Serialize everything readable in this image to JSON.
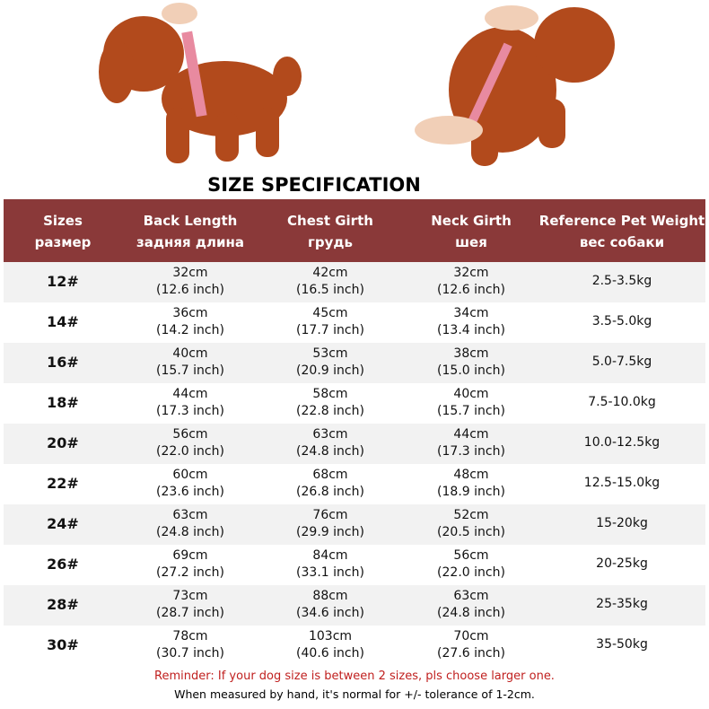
{
  "header": {
    "title": "SIZE SPECIFICATION"
  },
  "table": {
    "columns": [
      {
        "en": "Sizes",
        "ru": "размер"
      },
      {
        "en": "Back Length",
        "ru": "задняя длина"
      },
      {
        "en": "Chest Girth",
        "ru": "грудь"
      },
      {
        "en": "Neck Girth",
        "ru": "шея"
      },
      {
        "en": "Reference Pet Weight",
        "ru": "вес собаки"
      }
    ],
    "rows": [
      [
        "12#",
        [
          "32cm",
          "(12.6 inch)"
        ],
        [
          "42cm",
          "(16.5 inch)"
        ],
        [
          "32cm",
          "(12.6 inch)"
        ],
        "2.5-3.5kg"
      ],
      [
        "14#",
        [
          "36cm",
          "(14.2 inch)"
        ],
        [
          "45cm",
          "(17.7 inch)"
        ],
        [
          "34cm",
          "(13.4 inch)"
        ],
        "3.5-5.0kg"
      ],
      [
        "16#",
        [
          "40cm",
          "(15.7 inch)"
        ],
        [
          "53cm",
          "(20.9 inch)"
        ],
        [
          "38cm",
          "(15.0 inch)"
        ],
        "5.0-7.5kg"
      ],
      [
        "18#",
        [
          "44cm",
          "(17.3 inch)"
        ],
        [
          "58cm",
          "(22.8 inch)"
        ],
        [
          "40cm",
          "(15.7 inch)"
        ],
        "7.5-10.0kg"
      ],
      [
        "20#",
        [
          "56cm",
          "(22.0 inch)"
        ],
        [
          "63cm",
          "(24.8 inch)"
        ],
        [
          "44cm",
          "(17.3 inch)"
        ],
        "10.0-12.5kg"
      ],
      [
        "22#",
        [
          "60cm",
          "(23.6 inch)"
        ],
        [
          "68cm",
          "(26.8 inch)"
        ],
        [
          "48cm",
          "(18.9 inch)"
        ],
        "12.5-15.0kg"
      ],
      [
        "24#",
        [
          "63cm",
          "(24.8 inch)"
        ],
        [
          "76cm",
          "(29.9 inch)"
        ],
        [
          "52cm",
          "(20.5 inch)"
        ],
        "15-20kg"
      ],
      [
        "26#",
        [
          "69cm",
          "(27.2 inch)"
        ],
        [
          "84cm",
          "(33.1 inch)"
        ],
        [
          "56cm",
          "(22.0 inch)"
        ],
        "20-25kg"
      ],
      [
        "28#",
        [
          "73cm",
          "(28.7 inch)"
        ],
        [
          "88cm",
          "(34.6 inch)"
        ],
        [
          "63cm",
          "(24.8 inch)"
        ],
        "25-35kg"
      ],
      [
        "30#",
        [
          "78cm",
          "(30.7 inch)"
        ],
        [
          "103cm",
          "(40.6 inch)"
        ],
        [
          "70cm",
          "(27.6 inch)"
        ],
        "35-50kg"
      ]
    ]
  },
  "footer": {
    "reminder": "Reminder: If your dog size is between 2 sizes, pls choose larger one.",
    "note": "When measured by hand, it's normal for +/- tolerance of 1-2cm."
  }
}
